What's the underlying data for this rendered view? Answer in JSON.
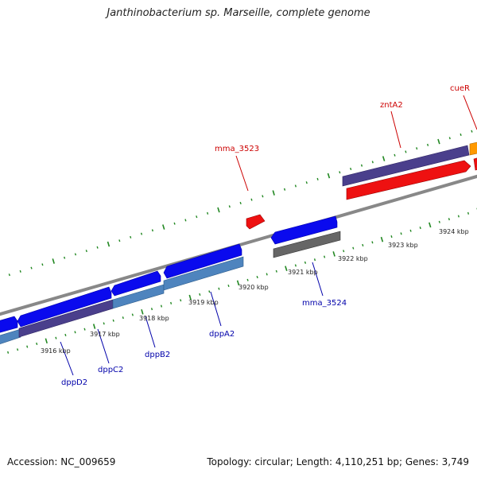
{
  "title": "Janthinobacterium sp. Marseille, complete genome",
  "footer": {
    "accession": "Accession: NC_009659",
    "summary": "Topology: circular; Length: 4,110,251 bp; Genes: 3,749"
  },
  "colors": {
    "backbone": "#888888",
    "tick": "#228822",
    "forward_cds": "#0a0aee",
    "forward_rna": "#ee1111",
    "forward_other": "#ff9900",
    "reverse_blue": "#4e84be",
    "reverse_purple": "#4a3f8c",
    "reverse_gray": "#666666",
    "label_forward": "#cc0000",
    "label_reverse": "#0000aa",
    "kbp_text": "#222222"
  },
  "kbp_labels": [
    "3916 kbp",
    "3917 kbp",
    "3918 kbp",
    "3919 kbp",
    "3920 kbp",
    "3921 kbp",
    "3922 kbp",
    "3923 kbp",
    "3924 kbp"
  ],
  "gene_labels": {
    "forward": [
      "mma_3523",
      "zntA2",
      "cueR"
    ],
    "reverse": [
      "dppD2",
      "dppC2",
      "dppB2",
      "dppA2",
      "mma_3524"
    ]
  }
}
